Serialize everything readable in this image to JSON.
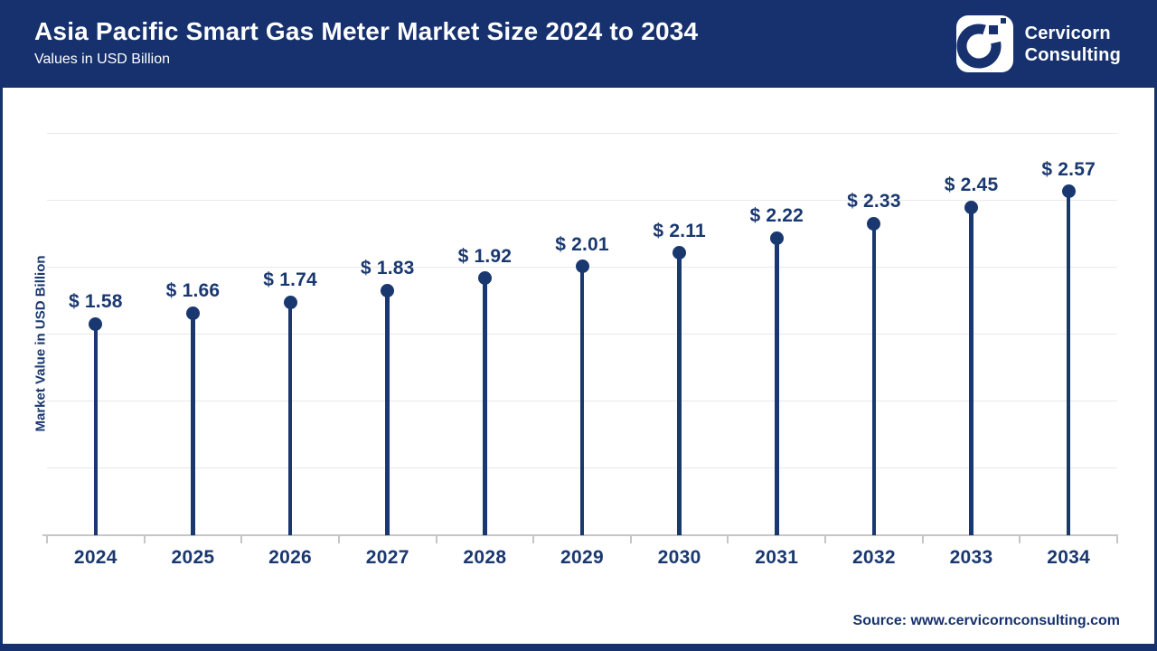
{
  "header": {
    "title": "Asia Pacific Smart Gas Meter Market Size 2024 to 2034",
    "subtitle": "Values in USD Billion",
    "brand": {
      "logo_icon": "cervicorn-c-icon",
      "name_line1": "Cervicorn",
      "name_line2": "Consulting"
    }
  },
  "chart_data": {
    "type": "bar",
    "variant": "lollipop",
    "title": "Asia Pacific Smart Gas Meter Market Size 2024 to 2034",
    "subtitle": "Values in USD Billion",
    "categories": [
      "2024",
      "2025",
      "2026",
      "2027",
      "2028",
      "2029",
      "2030",
      "2031",
      "2032",
      "2033",
      "2034"
    ],
    "values": [
      1.58,
      1.66,
      1.74,
      1.83,
      1.92,
      2.01,
      2.11,
      2.22,
      2.33,
      2.45,
      2.57
    ],
    "value_prefix": "$ ",
    "xlabel": "",
    "ylabel": "Market Value in USD Billion",
    "ylim": [
      0,
      3
    ],
    "gridline_step": 0.5,
    "grid": "horizontal",
    "legend": "none",
    "y_tick_labels": "none"
  },
  "footer": {
    "source": "Source: www.cervicornconsulting.com"
  },
  "colors": {
    "header_navy": "#16316d",
    "chart_navy": "#1a3870",
    "gridline": "#e9e9e9",
    "axis_line": "#c6c6c6",
    "background": "#ffffff",
    "text_on_navy": "#ffffff"
  }
}
